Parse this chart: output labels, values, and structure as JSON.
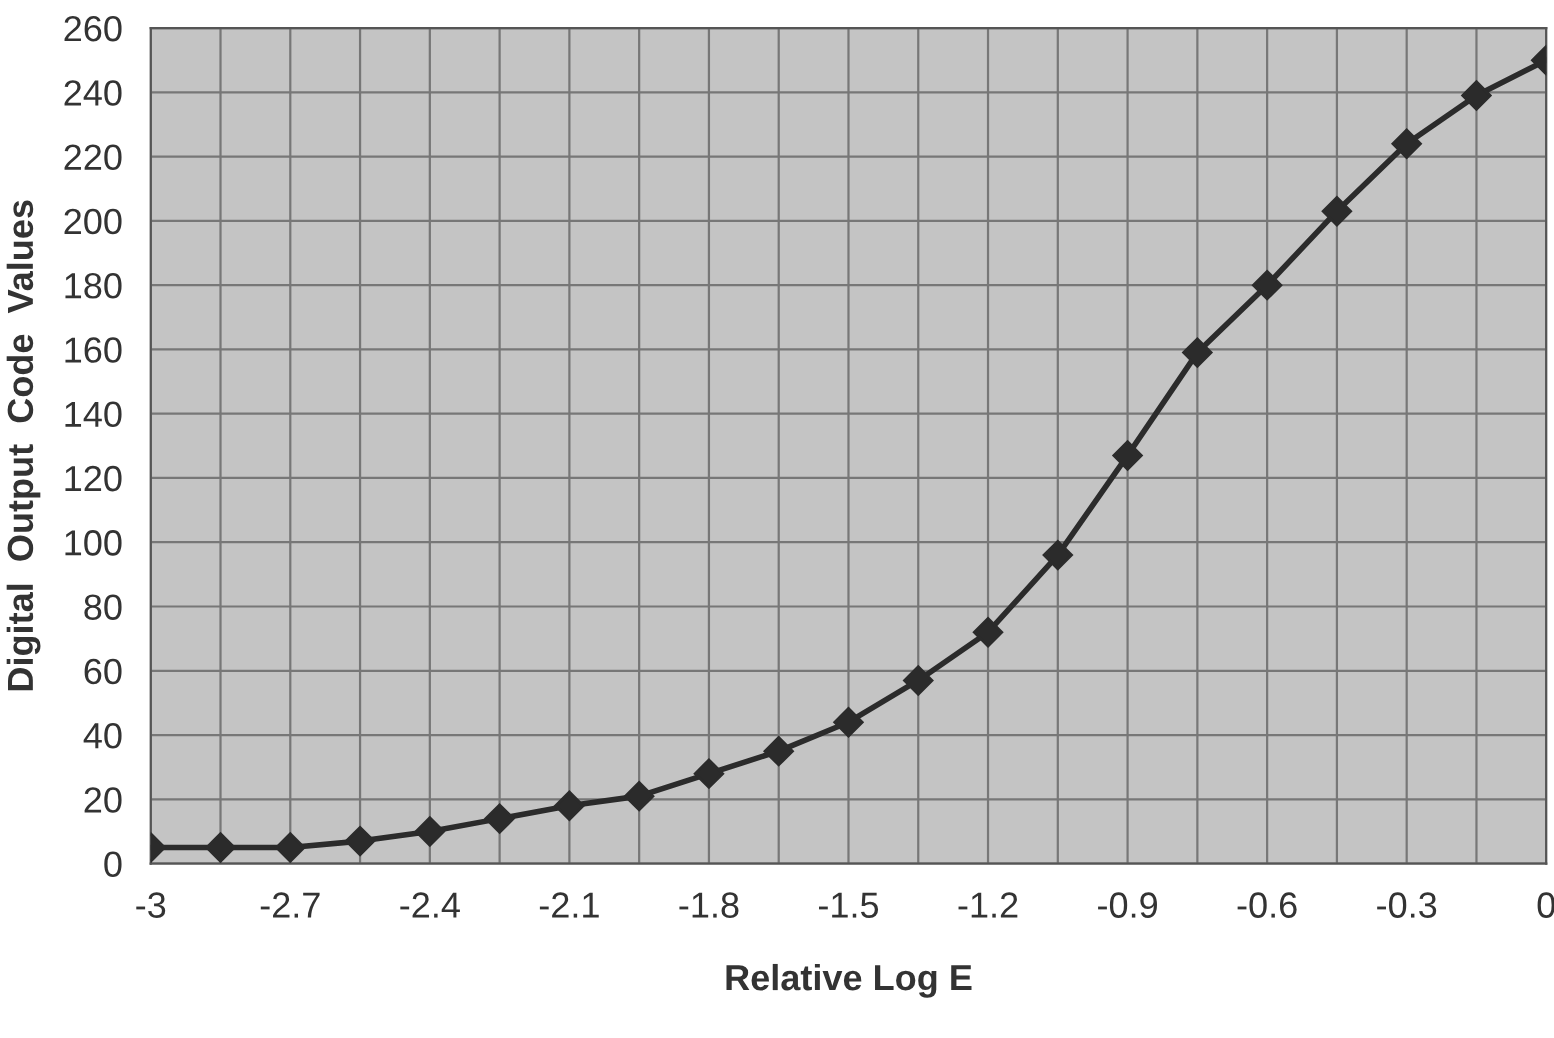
{
  "chart_data": {
    "type": "line",
    "xlabel": "Relative Log E",
    "ylabel": "Digital  Output  Code  Values",
    "x": [
      -3,
      -2.85,
      -2.7,
      -2.55,
      -2.4,
      -2.25,
      -2.1,
      -1.95,
      -1.8,
      -1.65,
      -1.5,
      -1.35,
      -1.2,
      -1.05,
      -0.9,
      -0.75,
      -0.6,
      -0.45,
      -0.3,
      -0.15,
      0
    ],
    "series": [
      {
        "color": "#2b2b2b",
        "values": [
          5,
          5,
          5,
          7,
          10,
          14,
          18,
          21,
          28,
          35,
          44,
          57,
          72,
          96,
          127,
          159,
          180,
          203,
          224,
          239,
          250
        ]
      }
    ],
    "xlim": [
      -3,
      0
    ],
    "ylim": [
      0,
      260
    ],
    "xticks": [
      -3,
      {
        "value": -2.85,
        "label": null
      },
      -2.7,
      {
        "value": -2.55,
        "label": null
      },
      -2.4,
      {
        "value": -2.25,
        "label": null
      },
      -2.1,
      {
        "value": -1.95,
        "label": null
      },
      -1.8,
      {
        "value": -1.65,
        "label": null
      },
      -1.5,
      {
        "value": -1.35,
        "label": null
      },
      -1.2,
      {
        "value": -1.05,
        "label": null
      },
      -0.9,
      {
        "value": -0.75,
        "label": null
      },
      -0.6,
      {
        "value": -0.45,
        "label": null
      },
      -0.3,
      {
        "value": -0.15,
        "label": null
      },
      0
    ],
    "yticks": [
      0,
      20,
      40,
      60,
      80,
      100,
      120,
      140,
      160,
      180,
      200,
      220,
      240,
      260
    ],
    "grid": true,
    "marker": "diamond",
    "line_style": "solid",
    "legend": false
  }
}
